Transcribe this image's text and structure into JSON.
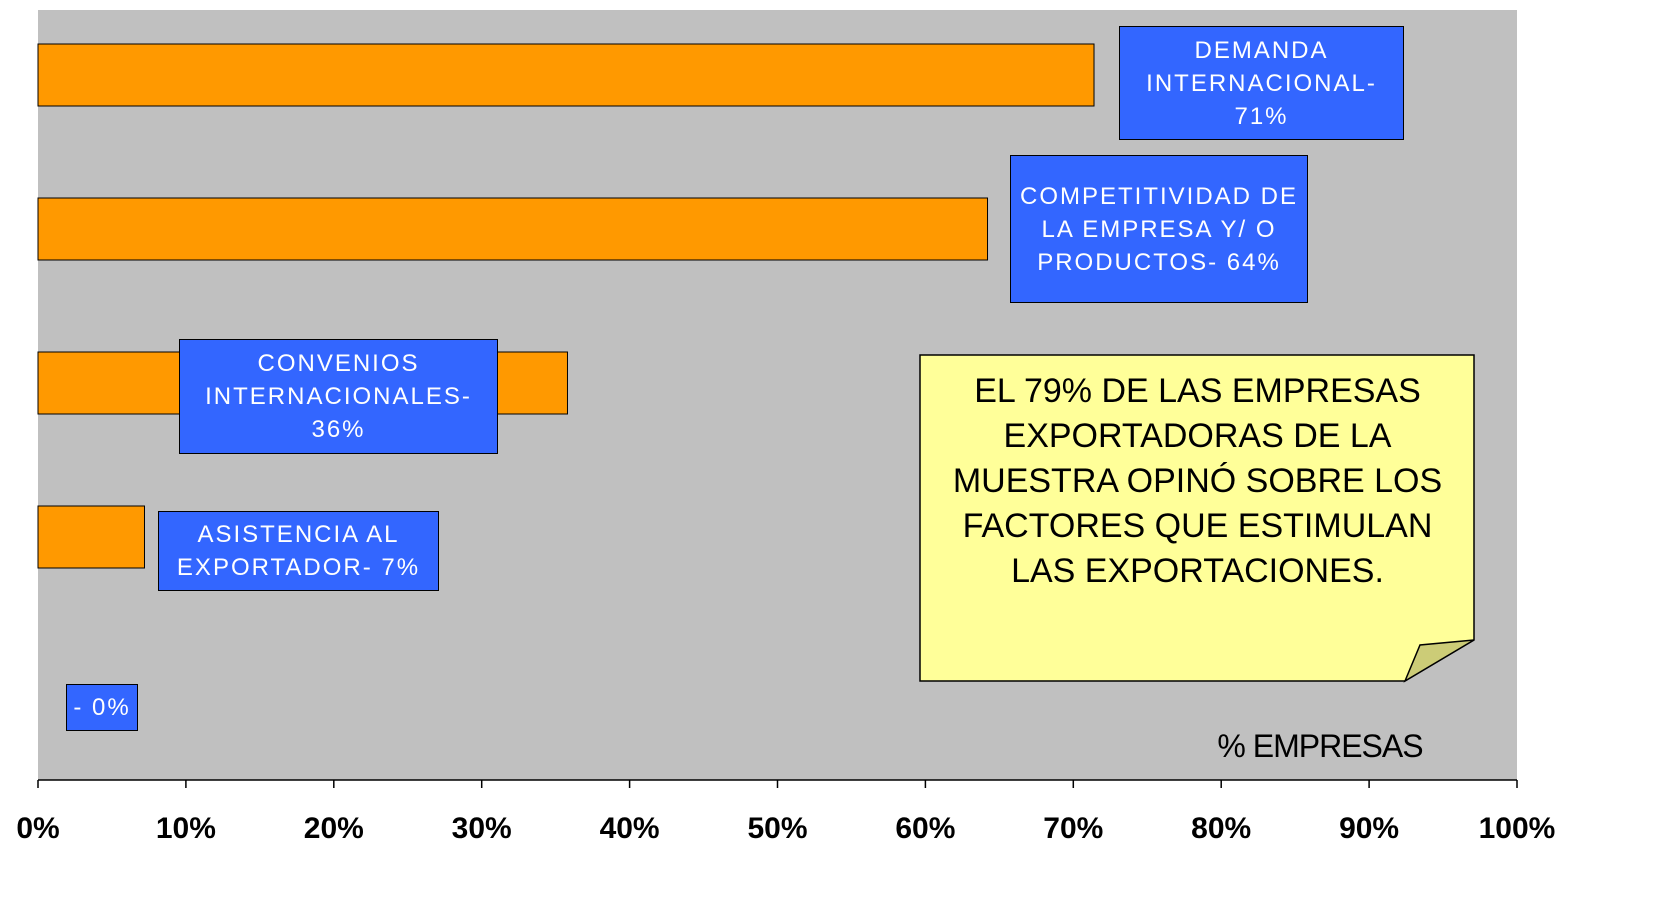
{
  "chart_data": {
    "type": "bar",
    "orientation": "horizontal",
    "values": [
      71.4,
      64.2,
      35.8,
      7.2,
      0
    ],
    "value_labels": [
      "DEMANDA INTERNACIONAL- 71%",
      "COMPETITIVIDAD DE LA EMPRESA Y/ O PRODUCTOS- 64%",
      "CONVENIOS INTERNACIONALES- 36%",
      "ASISTENCIA AL EXPORTADOR- 7%",
      "- 0%"
    ],
    "color": "#ff9900",
    "label_color": "#3366ff",
    "xlim": [
      0,
      100
    ],
    "xticks": [
      {
        "value": 0,
        "label": "0%"
      },
      {
        "value": 10,
        "label": "10%"
      },
      {
        "value": 20,
        "label": "20%"
      },
      {
        "value": 30,
        "label": "30%"
      },
      {
        "value": 40,
        "label": "40%"
      },
      {
        "value": 50,
        "label": "50%"
      },
      {
        "value": 60,
        "label": "60%"
      },
      {
        "value": 70,
        "label": "70%"
      },
      {
        "value": 80,
        "label": "80%"
      },
      {
        "value": 90,
        "label": "90%"
      },
      {
        "value": 100,
        "label": "100%"
      }
    ],
    "xlabel": "% EMPRESAS",
    "annotation": "EL 79% DE LAS EMPRESAS EXPORTADORAS DE LA MUESTRA OPINÓ SOBRE LOS FACTORES QUE ESTIMULAN LAS EXPORTACIONES."
  }
}
